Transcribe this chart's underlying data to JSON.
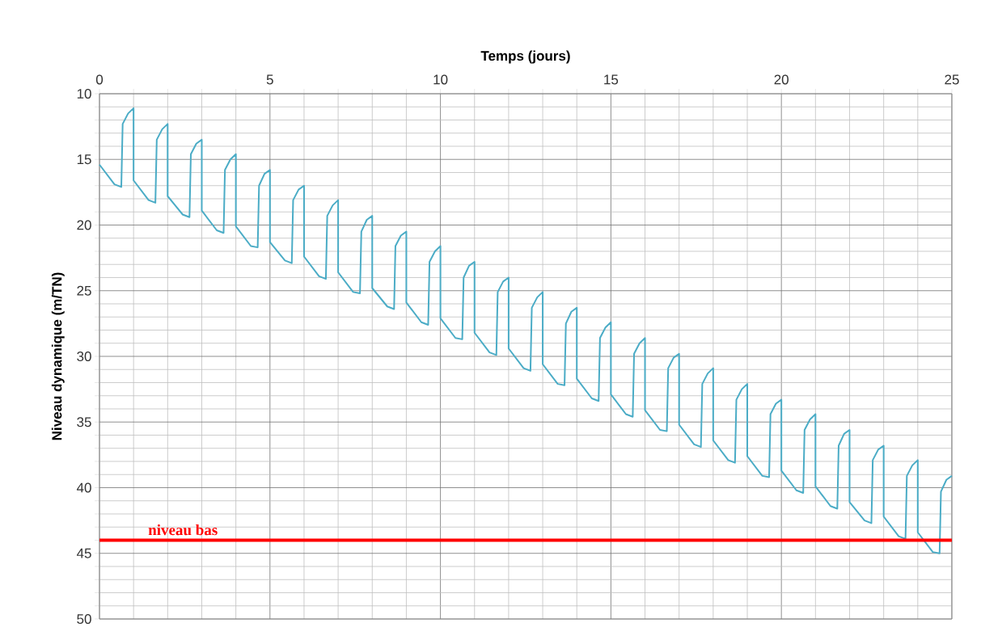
{
  "chart_data": {
    "type": "line",
    "xlabel": "Temps (jours)",
    "ylabel": "Niveau dynamique (m/TN)",
    "xlim": [
      0,
      25
    ],
    "ylim": [
      50,
      10
    ],
    "xticks": [
      0,
      5,
      10,
      15,
      20,
      25
    ],
    "yticks": [
      10,
      15,
      20,
      25,
      30,
      35,
      40,
      45,
      50
    ],
    "grid": true,
    "marker": "none",
    "line_style": "solid",
    "ref_lines": [
      {
        "axis": "y",
        "value": 44,
        "label": "niveau bas",
        "color": "#ff0000"
      }
    ],
    "series": [
      {
        "color": "#4bacc6",
        "x": [
          0,
          0.44,
          0.64,
          0.68,
          0.84,
          1,
          1,
          1.44,
          1.64,
          1.68,
          1.84,
          2,
          2,
          2.44,
          2.64,
          2.68,
          2.84,
          3,
          3,
          3.44,
          3.64,
          3.68,
          3.84,
          4,
          4,
          4.44,
          4.64,
          4.68,
          4.84,
          5,
          5,
          5.44,
          5.64,
          5.68,
          5.84,
          6,
          6,
          6.44,
          6.64,
          6.68,
          6.84,
          7,
          7,
          7.44,
          7.64,
          7.68,
          7.84,
          8,
          8,
          8.44,
          8.64,
          8.68,
          8.84,
          9,
          9,
          9.44,
          9.64,
          9.68,
          9.84,
          10,
          10,
          10.44,
          10.64,
          10.68,
          10.84,
          11,
          11,
          11.44,
          11.64,
          11.68,
          11.84,
          12,
          12,
          12.44,
          12.64,
          12.68,
          12.84,
          13,
          13,
          13.44,
          13.64,
          13.68,
          13.84,
          14,
          14,
          14.44,
          14.64,
          14.68,
          14.84,
          15,
          15,
          15.44,
          15.64,
          15.68,
          15.84,
          16,
          16,
          16.44,
          16.64,
          16.68,
          16.84,
          17,
          17,
          17.44,
          17.64,
          17.68,
          17.84,
          18,
          18,
          18.44,
          18.64,
          18.68,
          18.84,
          19,
          19,
          19.44,
          19.64,
          19.68,
          19.84,
          20,
          20,
          20.44,
          20.64,
          20.68,
          20.84,
          21,
          21,
          21.44,
          21.64,
          21.68,
          21.84,
          22,
          22,
          22.44,
          22.64,
          22.68,
          22.84,
          23,
          23,
          23.44,
          23.64,
          23.68,
          23.84,
          24,
          24,
          24.44,
          24.64,
          24.68,
          24.84,
          25
        ],
        "values": [
          15.4,
          16.9,
          17.1,
          12.3,
          11.5,
          11.1,
          16.6,
          18.1,
          18.3,
          13.5,
          12.7,
          12.3,
          17.8,
          19.2,
          19.4,
          14.6,
          13.8,
          13.5,
          18.9,
          20.4,
          20.6,
          15.8,
          15.0,
          14.6,
          20.1,
          21.6,
          21.7,
          17.0,
          16.1,
          15.8,
          21.3,
          22.7,
          22.9,
          18.1,
          17.3,
          17.0,
          22.4,
          23.9,
          24.1,
          19.3,
          18.5,
          18.1,
          23.6,
          25.1,
          25.2,
          20.5,
          19.6,
          19.3,
          24.8,
          26.2,
          26.4,
          21.6,
          20.8,
          20.5,
          25.9,
          27.4,
          27.6,
          22.8,
          22.0,
          21.6,
          27.1,
          28.6,
          28.7,
          24.0,
          23.1,
          22.8,
          28.2,
          29.7,
          29.9,
          25.1,
          24.3,
          24.0,
          29.4,
          30.9,
          31.1,
          26.3,
          25.5,
          25.1,
          30.6,
          32.1,
          32.2,
          27.5,
          26.6,
          26.3,
          31.7,
          33.2,
          33.4,
          28.6,
          27.8,
          27.4,
          32.9,
          34.4,
          34.6,
          29.8,
          29.0,
          28.6,
          34.1,
          35.6,
          35.7,
          30.9,
          30.1,
          29.8,
          35.2,
          36.7,
          36.9,
          32.1,
          31.3,
          30.9,
          36.4,
          37.9,
          38.1,
          33.3,
          32.5,
          32.1,
          37.6,
          39.1,
          39.2,
          34.4,
          33.6,
          33.3,
          38.7,
          40.2,
          40.4,
          35.6,
          34.8,
          34.4,
          39.9,
          41.4,
          41.6,
          36.8,
          35.9,
          35.6,
          41.1,
          42.5,
          42.7,
          37.9,
          37.1,
          36.8,
          42.2,
          43.7,
          43.9,
          39.1,
          38.3,
          37.9,
          43.4,
          44.9,
          45.0,
          40.3,
          39.4,
          39.1
        ]
      }
    ]
  }
}
